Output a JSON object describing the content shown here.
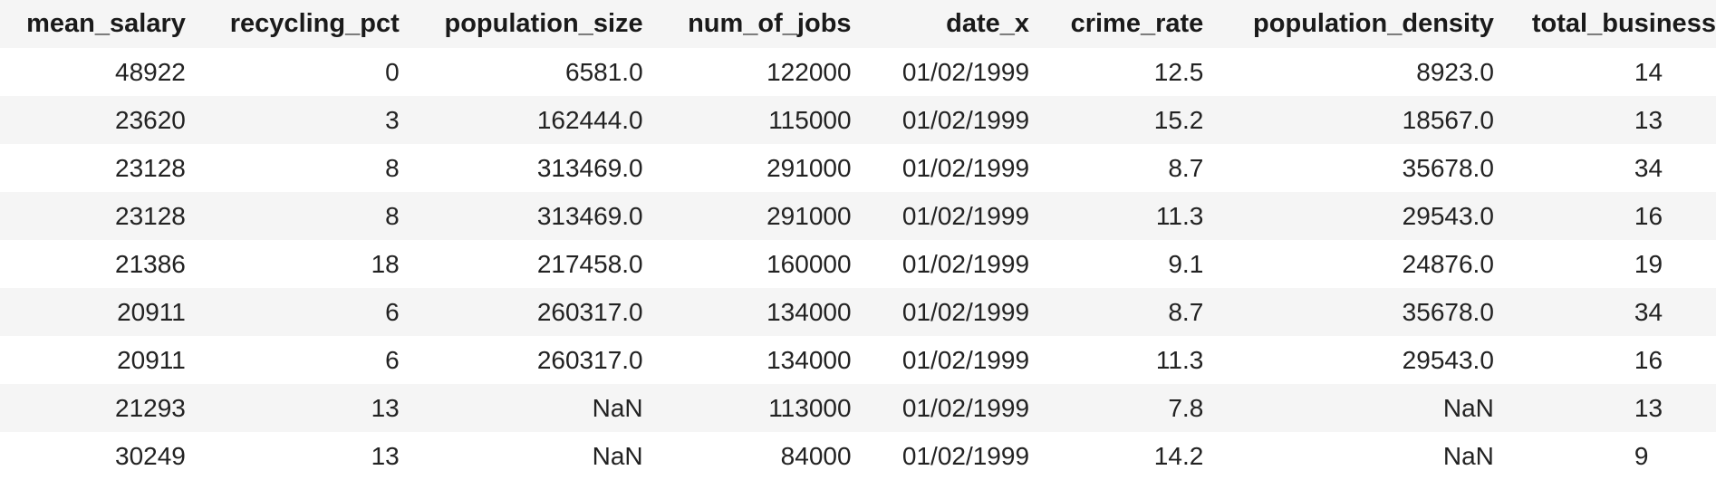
{
  "table": {
    "columns": [
      "mean_salary",
      "recycling_pct",
      "population_size",
      "num_of_jobs",
      "date_x",
      "crime_rate",
      "population_density",
      "total_business"
    ],
    "rows": [
      [
        "48922",
        "0",
        "6581.0",
        "122000",
        "01/02/1999",
        "12.5",
        "8923.0",
        "14"
      ],
      [
        "23620",
        "3",
        "162444.0",
        "115000",
        "01/02/1999",
        "15.2",
        "18567.0",
        "13"
      ],
      [
        "23128",
        "8",
        "313469.0",
        "291000",
        "01/02/1999",
        "8.7",
        "35678.0",
        "34"
      ],
      [
        "23128",
        "8",
        "313469.0",
        "291000",
        "01/02/1999",
        "11.3",
        "29543.0",
        "16"
      ],
      [
        "21386",
        "18",
        "217458.0",
        "160000",
        "01/02/1999",
        "9.1",
        "24876.0",
        "19"
      ],
      [
        "20911",
        "6",
        "260317.0",
        "134000",
        "01/02/1999",
        "8.7",
        "35678.0",
        "34"
      ],
      [
        "20911",
        "6",
        "260317.0",
        "134000",
        "01/02/1999",
        "11.3",
        "29543.0",
        "16"
      ],
      [
        "21293",
        "13",
        "NaN",
        "113000",
        "01/02/1999",
        "7.8",
        "NaN",
        "13"
      ],
      [
        "30249",
        "13",
        "NaN",
        "84000",
        "01/02/1999",
        "14.2",
        "NaN",
        "9"
      ]
    ]
  }
}
